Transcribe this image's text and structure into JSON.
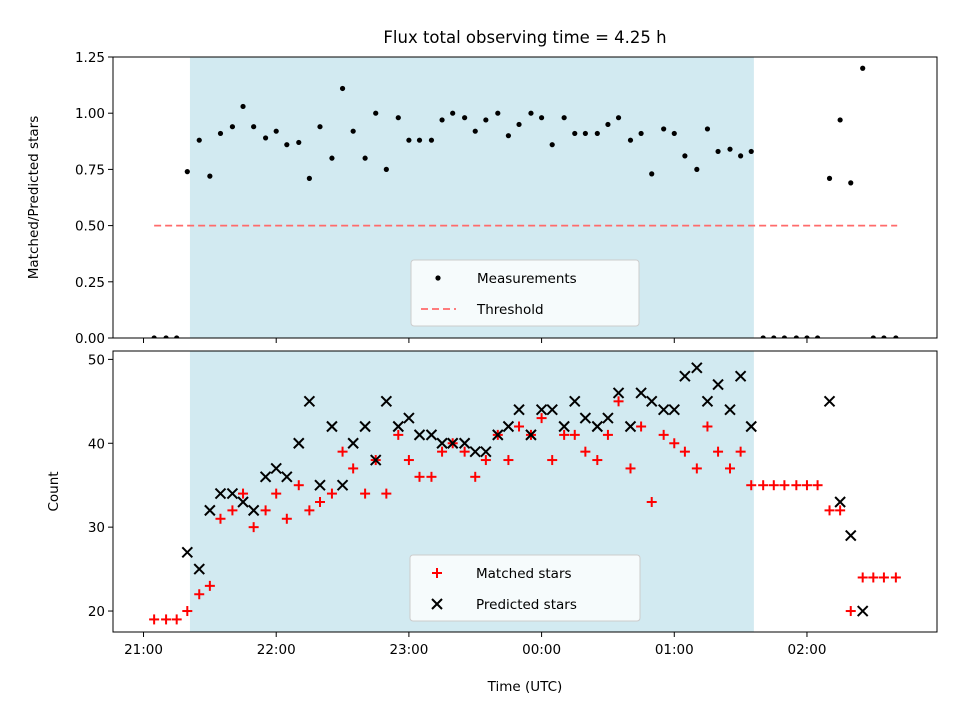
{
  "figure": {
    "title": "Flux total observing time = 4.25 h",
    "xlabel": "Time (UTC)",
    "xticks": [
      {
        "t": 21.0,
        "label": "21:00"
      },
      {
        "t": 22.0,
        "label": "22:00"
      },
      {
        "t": 23.0,
        "label": "23:00"
      },
      {
        "t": 24.0,
        "label": "00:00"
      },
      {
        "t": 25.0,
        "label": "01:00"
      },
      {
        "t": 26.0,
        "label": "02:00"
      }
    ],
    "xlim": [
      20.77,
      26.98
    ],
    "shaded_span": [
      21.35,
      25.6
    ],
    "colors": {
      "shade": "#add8e6",
      "measurements": "#000000",
      "threshold": "#ff6b6b",
      "matched": "#ff0000",
      "predicted": "#000000"
    }
  },
  "chart_data": [
    {
      "type": "scatter",
      "ylabel": "Matched/Predicted stars",
      "ylim": [
        0,
        1.25
      ],
      "yticks": [
        "0.00",
        "0.25",
        "0.50",
        "0.75",
        "1.00",
        "1.25"
      ],
      "legend": {
        "placement": "lower-center",
        "entries": [
          "Measurements",
          "Threshold"
        ]
      },
      "threshold": {
        "name": "Threshold",
        "value": 0.5,
        "x_range": [
          21.08,
          26.68
        ]
      },
      "series": [
        {
          "name": "Measurements",
          "x": [
            21.08,
            21.17,
            21.25,
            21.33,
            21.42,
            21.5,
            21.58,
            21.67,
            21.75,
            21.83,
            21.92,
            22.0,
            22.08,
            22.17,
            22.25,
            22.33,
            22.42,
            22.5,
            22.58,
            22.67,
            22.75,
            22.83,
            22.92,
            23.0,
            23.08,
            23.17,
            23.25,
            23.33,
            23.42,
            23.5,
            23.58,
            23.67,
            23.75,
            23.83,
            23.92,
            24.0,
            24.08,
            24.17,
            24.25,
            24.33,
            24.42,
            24.5,
            24.58,
            24.67,
            24.75,
            24.83,
            24.92,
            25.0,
            25.08,
            25.17,
            25.25,
            25.33,
            25.42,
            25.5,
            25.58,
            25.67,
            25.75,
            25.83,
            25.92,
            26.0,
            26.08,
            26.17,
            26.25,
            26.33,
            26.42,
            26.5,
            26.58,
            26.67
          ],
          "y": [
            0,
            0,
            0,
            0.74,
            0.88,
            0.72,
            0.91,
            0.94,
            1.03,
            0.94,
            0.89,
            0.92,
            0.86,
            0.87,
            0.71,
            0.94,
            0.8,
            1.11,
            0.92,
            0.8,
            1.0,
            0.75,
            0.98,
            0.88,
            0.88,
            0.88,
            0.97,
            1.0,
            0.98,
            0.92,
            0.97,
            1.0,
            0.9,
            0.95,
            1.0,
            0.98,
            0.86,
            0.98,
            0.91,
            0.91,
            0.91,
            0.95,
            0.98,
            0.88,
            0.91,
            0.73,
            0.93,
            0.91,
            0.81,
            0.75,
            0.93,
            0.83,
            0.84,
            0.81,
            0.83,
            0,
            0,
            0,
            0,
            0,
            0,
            0.71,
            0.97,
            0.69,
            1.2,
            0,
            0,
            0
          ]
        }
      ]
    },
    {
      "type": "scatter",
      "ylabel": "Count",
      "ylim": [
        17.5,
        51
      ],
      "yticks": [
        "20",
        "30",
        "40",
        "50"
      ],
      "legend": {
        "placement": "lower-center",
        "entries": [
          "Matched stars",
          "Predicted stars"
        ]
      },
      "series": [
        {
          "name": "Matched stars",
          "marker": "plus",
          "x": [
            21.08,
            21.17,
            21.25,
            21.33,
            21.42,
            21.5,
            21.58,
            21.67,
            21.75,
            21.83,
            21.92,
            22.0,
            22.08,
            22.17,
            22.25,
            22.33,
            22.42,
            22.5,
            22.58,
            22.67,
            22.75,
            22.83,
            22.92,
            23.0,
            23.08,
            23.17,
            23.25,
            23.33,
            23.42,
            23.5,
            23.58,
            23.67,
            23.75,
            23.83,
            23.92,
            24.0,
            24.08,
            24.17,
            24.25,
            24.33,
            24.42,
            24.5,
            24.58,
            24.67,
            24.75,
            24.83,
            24.92,
            25.0,
            25.08,
            25.17,
            25.25,
            25.33,
            25.42,
            25.5,
            25.58,
            25.67,
            25.75,
            25.83,
            25.92,
            26.0,
            26.08,
            26.17,
            26.25,
            26.33,
            26.42,
            26.5,
            26.58,
            26.67
          ],
          "y": [
            19,
            19,
            19,
            20,
            22,
            23,
            31,
            32,
            34,
            30,
            32,
            34,
            31,
            35,
            32,
            33,
            34,
            39,
            37,
            34,
            38,
            34,
            41,
            38,
            36,
            36,
            39,
            40,
            39,
            36,
            38,
            41,
            38,
            42,
            41,
            43,
            38,
            41,
            41,
            39,
            38,
            41,
            45,
            37,
            42,
            33,
            41,
            40,
            39,
            37,
            42,
            39,
            37,
            39,
            35,
            35,
            35,
            35,
            35,
            35,
            35,
            32,
            32,
            20,
            24,
            24,
            24,
            24
          ]
        },
        {
          "name": "Predicted stars",
          "marker": "x",
          "x": [
            21.33,
            21.42,
            21.5,
            21.58,
            21.67,
            21.75,
            21.83,
            21.92,
            22.0,
            22.08,
            22.17,
            22.25,
            22.33,
            22.42,
            22.5,
            22.58,
            22.67,
            22.75,
            22.83,
            22.92,
            23.0,
            23.08,
            23.17,
            23.25,
            23.33,
            23.42,
            23.5,
            23.58,
            23.67,
            23.75,
            23.83,
            23.92,
            24.0,
            24.08,
            24.17,
            24.25,
            24.33,
            24.42,
            24.5,
            24.58,
            24.67,
            24.75,
            24.83,
            24.92,
            25.0,
            25.08,
            25.17,
            25.25,
            25.33,
            25.42,
            25.5,
            25.58,
            26.17,
            26.25,
            26.33,
            26.42
          ],
          "y": [
            27,
            25,
            32,
            34,
            34,
            33,
            32,
            36,
            37,
            36,
            40,
            45,
            35,
            42,
            35,
            40,
            42,
            38,
            45,
            42,
            43,
            41,
            41,
            40,
            40,
            40,
            39,
            39,
            41,
            42,
            44,
            41,
            44,
            44,
            42,
            45,
            43,
            42,
            43,
            46,
            42,
            46,
            45,
            44,
            44,
            48,
            49,
            45,
            47,
            44,
            48,
            42,
            45,
            33,
            29,
            20
          ]
        }
      ]
    }
  ]
}
